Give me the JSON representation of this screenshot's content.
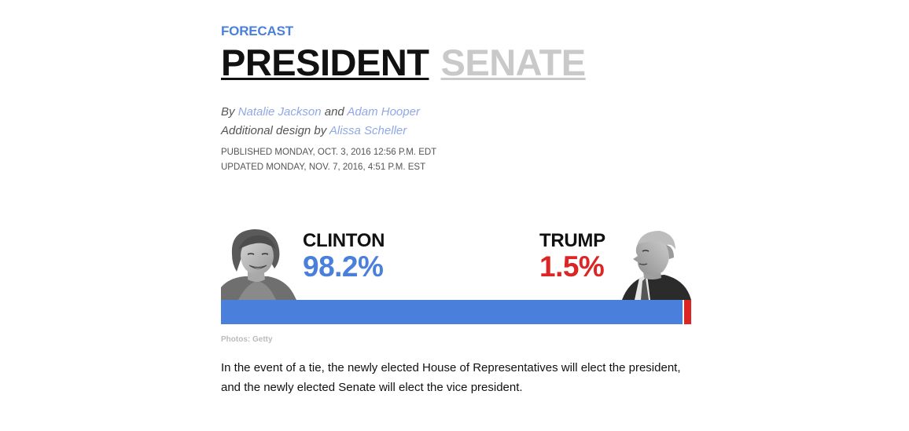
{
  "header": {
    "kicker": "FORECAST",
    "tabs": [
      {
        "label": "PRESIDENT",
        "active": true
      },
      {
        "label": "SENATE",
        "active": false
      }
    ]
  },
  "byline": {
    "prefix": "By ",
    "author1": "Natalie Jackson",
    "joiner": " and ",
    "author2": "Adam Hooper",
    "design_prefix": "Additional design by ",
    "designer": "Alissa Scheller"
  },
  "dates": {
    "published": "PUBLISHED MONDAY, OCT. 3, 2016 12:56 P.M. EDT",
    "updated": "UPDATED MONDAY, NOV. 7, 2016, 4:51 P.M. EST"
  },
  "forecast": {
    "candidates": [
      {
        "name": "CLINTON",
        "pct_label": "98.2%",
        "pct": 98.2,
        "color": "#4a7fdc"
      },
      {
        "name": "TRUMP",
        "pct_label": "1.5%",
        "pct": 1.5,
        "color": "#dc2626"
      }
    ]
  },
  "photo_credit": "Photos: Getty",
  "note": "In the event of a tie, the newly elected House of Representatives will elect the president, and the newly elected Senate will elect the vice president.",
  "colors": {
    "accent_blue": "#4a7fdc",
    "accent_red": "#dc2626",
    "link": "#8fa8e6",
    "inactive_tab": "#c9c9c9"
  }
}
